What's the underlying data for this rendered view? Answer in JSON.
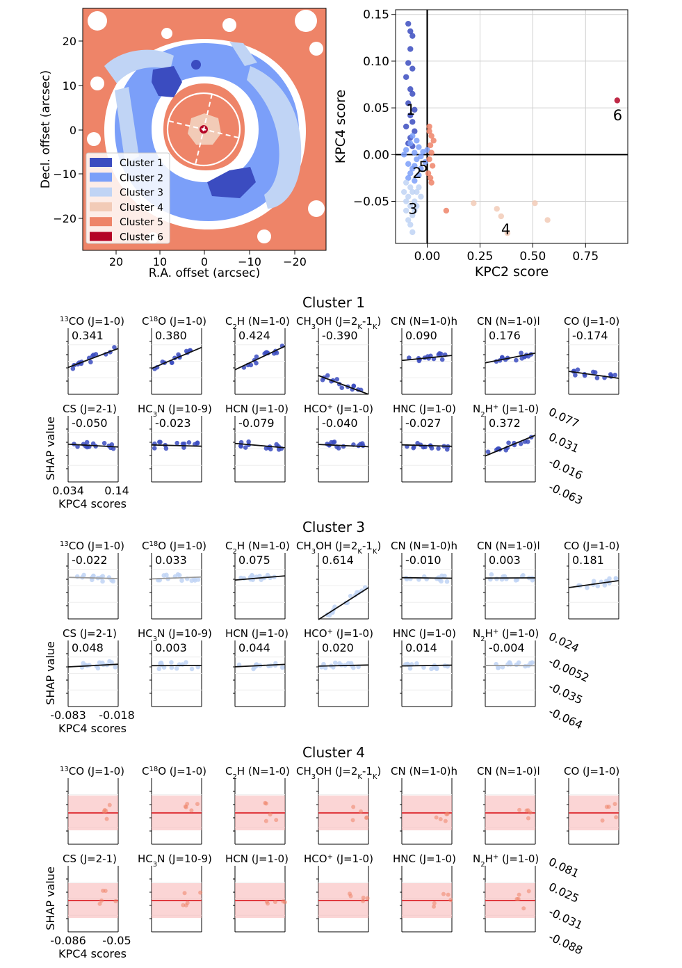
{
  "colors": {
    "cluster1": "#3b4cc0",
    "cluster2": "#7b9ff9",
    "cluster3": "#c0d4f5",
    "cluster4": "#f2cbb7",
    "cluster5": "#ee8468",
    "cluster6": "#b40426",
    "fit_line": "#111111",
    "band": "#f7b3b3",
    "band_line": "#e0393e"
  },
  "map": {
    "xlabel": "R.A. offset (arcsec)",
    "ylabel": "Decl. offset (arcsec)",
    "xticks": [
      "20",
      "10",
      "0",
      "−10",
      "−20"
    ],
    "yticks": [
      "20",
      "10",
      "0",
      "−10",
      "−20"
    ],
    "legend": [
      "Cluster 1",
      "Cluster 2",
      "Cluster 3",
      "Cluster 4",
      "Cluster 5",
      "Cluster 6"
    ]
  },
  "chart_data": [
    {
      "type": "scatter",
      "xlabel": "KPC2 score",
      "ylabel": "KPC4 score",
      "xlim": [
        -0.15,
        0.95
      ],
      "ylim": [
        -0.095,
        0.155
      ],
      "xticks": [
        "0.00",
        "0.25",
        "0.50",
        "0.75"
      ],
      "yticks": [
        "0.15",
        "0.10",
        "0.05",
        "0.00",
        "−0.05"
      ],
      "grid": true,
      "annotations": [
        "1",
        "2",
        "3",
        "4",
        "5",
        "6"
      ],
      "series": [
        {
          "cluster": 1,
          "points": [
            [
              -0.09,
              0.14
            ],
            [
              -0.08,
              0.132
            ],
            [
              -0.07,
              0.127
            ],
            [
              -0.08,
              0.113
            ],
            [
              -0.09,
              0.098
            ],
            [
              -0.07,
              0.092
            ],
            [
              -0.1,
              0.083
            ],
            [
              -0.08,
              0.07
            ],
            [
              -0.07,
              0.065
            ],
            [
              -0.09,
              0.055
            ],
            [
              -0.06,
              0.048
            ],
            [
              -0.08,
              0.042
            ],
            [
              -0.07,
              0.035
            ],
            [
              -0.1,
              0.03
            ],
            [
              -0.06,
              0.025
            ],
            [
              -0.08,
              0.018
            ],
            [
              -0.09,
              0.012
            ],
            [
              -0.07,
              0.009
            ]
          ]
        },
        {
          "cluster": 2,
          "points": [
            [
              -0.1,
              0.005
            ],
            [
              -0.08,
              0.012
            ],
            [
              -0.06,
              0.002
            ],
            [
              -0.05,
              -0.005
            ],
            [
              -0.09,
              -0.01
            ],
            [
              -0.07,
              -0.015
            ],
            [
              -0.04,
              0.008
            ],
            [
              -0.03,
              -0.002
            ],
            [
              -0.11,
              0.0
            ],
            [
              -0.08,
              -0.02
            ],
            [
              -0.06,
              -0.012
            ],
            [
              -0.05,
              0.015
            ],
            [
              -0.02,
              0.003
            ],
            [
              -0.03,
              -0.015
            ],
            [
              -0.07,
              0.02
            ],
            [
              -0.09,
              -0.025
            ],
            [
              -0.04,
              -0.022
            ],
            [
              -0.01,
              -0.008
            ],
            [
              0.0,
              0.005
            ],
            [
              -0.06,
              -0.028
            ]
          ]
        },
        {
          "cluster": 3,
          "points": [
            [
              -0.1,
              -0.03
            ],
            [
              -0.08,
              -0.035
            ],
            [
              -0.07,
              -0.04
            ],
            [
              -0.09,
              -0.045
            ],
            [
              -0.06,
              -0.05
            ],
            [
              -0.08,
              -0.055
            ],
            [
              -0.1,
              -0.06
            ],
            [
              -0.07,
              -0.065
            ],
            [
              -0.05,
              -0.04
            ],
            [
              -0.09,
              -0.07
            ],
            [
              -0.08,
              -0.075
            ],
            [
              -0.07,
              -0.083
            ],
            [
              -0.1,
              -0.05
            ],
            [
              -0.04,
              -0.035
            ],
            [
              -0.06,
              -0.06
            ],
            [
              -0.03,
              -0.045
            ],
            [
              -0.11,
              -0.04
            ],
            [
              -0.05,
              -0.055
            ]
          ]
        },
        {
          "cluster": 4,
          "points": [
            [
              0.22,
              -0.052
            ],
            [
              0.33,
              -0.058
            ],
            [
              0.35,
              -0.066
            ],
            [
              0.38,
              -0.084
            ],
            [
              0.51,
              -0.052
            ],
            [
              0.57,
              -0.07
            ]
          ]
        },
        {
          "cluster": 5,
          "points": [
            [
              0.01,
              0.025
            ],
            [
              0.02,
              0.02
            ],
            [
              0.015,
              0.01
            ],
            [
              0.02,
              0.002
            ],
            [
              0.01,
              -0.005
            ],
            [
              0.025,
              -0.012
            ],
            [
              0.005,
              -0.02
            ],
            [
              0.015,
              -0.025
            ],
            [
              0.03,
              0.015
            ],
            [
              0.01,
              0.03
            ],
            [
              0.02,
              -0.03
            ],
            [
              0.09,
              -0.06
            ]
          ]
        },
        {
          "cluster": 6,
          "points": [
            [
              0.9,
              0.058
            ]
          ]
        }
      ]
    },
    {
      "type": "scatter",
      "panel_group": "Cluster 1",
      "ylabel": "SHAP value",
      "xlabel": "KPC4 scores",
      "xtick_labels": [
        "0.034",
        "0.14"
      ],
      "shared_y_ticks": [
        "0.077",
        "0.031",
        "-0.016",
        "-0.063"
      ],
      "ylim": [
        -0.07,
        0.085
      ],
      "panels": [
        {
          "title": "13CO (J=1-0)",
          "slope": "0.341"
        },
        {
          "title": "C18O (J=1-0)",
          "slope": "0.380"
        },
        {
          "title": "C2H (N=1-0)",
          "slope": "0.424"
        },
        {
          "title": "CH3OH (J=2K-1K)",
          "slope": "-0.390"
        },
        {
          "title": "CN (N=1-0)h",
          "slope": "0.090"
        },
        {
          "title": "CN (N=1-0)l",
          "slope": "0.176"
        },
        {
          "title": "CO (J=1-0)",
          "slope": "-0.174"
        },
        {
          "title": "CS (J=2-1)",
          "slope": "-0.050"
        },
        {
          "title": "HC3N (J=10-9)",
          "slope": "-0.023"
        },
        {
          "title": "HCN (J=1-0)",
          "slope": "-0.079"
        },
        {
          "title": "HCO+ (J=1-0)",
          "slope": "-0.040"
        },
        {
          "title": "HNC (J=1-0)",
          "slope": "-0.027"
        },
        {
          "title": "N2H+ (J=1-0)",
          "slope": "0.372"
        }
      ]
    },
    {
      "type": "scatter",
      "panel_group": "Cluster 3",
      "ylabel": "SHAP value",
      "xlabel": "KPC4 scores",
      "xtick_labels": [
        "-0.083",
        "-0.018"
      ],
      "shared_y_ticks": [
        "0.024",
        "-0.0052",
        "-0.035",
        "-0.064"
      ],
      "ylim": [
        -0.07,
        0.03
      ],
      "panels": [
        {
          "title": "13CO (J=1-0)",
          "slope": "-0.022"
        },
        {
          "title": "C18O (J=1-0)",
          "slope": "0.033"
        },
        {
          "title": "C2H (N=1-0)",
          "slope": "0.075"
        },
        {
          "title": "CH3OH (J=2K-1K)",
          "slope": "0.614"
        },
        {
          "title": "CN (N=1-0)h",
          "slope": "-0.010"
        },
        {
          "title": "CN (N=1-0)l",
          "slope": "0.003"
        },
        {
          "title": "CO (J=1-0)",
          "slope": "0.181"
        },
        {
          "title": "CS (J=2-1)",
          "slope": "0.048"
        },
        {
          "title": "HC3N (J=10-9)",
          "slope": "0.003"
        },
        {
          "title": "HCN (J=1-0)",
          "slope": "0.044"
        },
        {
          "title": "HCO+ (J=1-0)",
          "slope": "0.020"
        },
        {
          "title": "HNC (J=1-0)",
          "slope": "0.014"
        },
        {
          "title": "N2H+ (J=1-0)",
          "slope": "-0.004"
        }
      ]
    },
    {
      "type": "scatter",
      "panel_group": "Cluster 4",
      "ylabel": "SHAP value",
      "xlabel": "KPC4 scores",
      "xtick_labels": [
        "-0.086",
        "-0.05"
      ],
      "shared_y_ticks": [
        "0.081",
        "0.025",
        "-0.031",
        "-0.088"
      ],
      "ylim": [
        -0.09,
        0.09
      ],
      "panels": [
        {
          "title": "13CO (J=1-0)",
          "slope": ""
        },
        {
          "title": "C18O (J=1-0)",
          "slope": ""
        },
        {
          "title": "C2H (N=1-0)",
          "slope": ""
        },
        {
          "title": "CH3OH (J=2K-1K)",
          "slope": ""
        },
        {
          "title": "CN (N=1-0)h",
          "slope": ""
        },
        {
          "title": "CN (N=1-0)l",
          "slope": ""
        },
        {
          "title": "CO (J=1-0)",
          "slope": ""
        },
        {
          "title": "CS (J=2-1)",
          "slope": ""
        },
        {
          "title": "HC3N (J=10-9)",
          "slope": ""
        },
        {
          "title": "HCN (J=1-0)",
          "slope": ""
        },
        {
          "title": "HCO+ (J=1-0)",
          "slope": ""
        },
        {
          "title": "HNC (J=1-0)",
          "slope": ""
        },
        {
          "title": "N2H+ (J=1-0)",
          "slope": ""
        }
      ]
    }
  ]
}
